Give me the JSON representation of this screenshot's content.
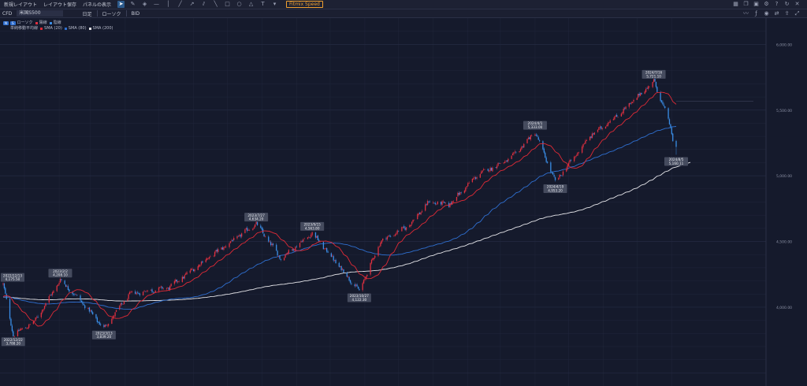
{
  "toolbar": {
    "new_layout": "新規レイアウト",
    "save_layout": "レイアウト保存",
    "panel_display": "パネルの表示",
    "speed_button": "Fitmix Speed",
    "tool_icons": [
      "cursor-icon",
      "brush-icon",
      "eraser-icon",
      "horizontal-line-icon",
      "vertical-line-icon",
      "trend-line-icon",
      "ray-icon",
      "parallel-lines-icon",
      "diagonal-line-icon",
      "rectangle-icon",
      "circle-icon",
      "triangle-icon",
      "text-icon",
      "dropdown-icon"
    ],
    "right_icons": [
      "layout-icon",
      "copy-icon",
      "screenshot-icon",
      "settings-icon",
      "help-icon",
      "refresh-icon",
      "close-icon"
    ]
  },
  "infobar": {
    "market": "CFD",
    "symbol": "米国S500",
    "timeframe": "日足",
    "chart_type": "ローソク",
    "price_side": "BID",
    "right_icons": [
      "line-chart-icon",
      "indicator-icon",
      "camera-icon",
      "compare-icon",
      "export-icon",
      "fullscreen-icon"
    ]
  },
  "legend": {
    "row1": {
      "tag1": "N",
      "tag2": "S",
      "label": "ローソク",
      "up_label": "陽線",
      "down_label": "陰線",
      "up_color": "#e03040",
      "down_color": "#3a8ee8"
    },
    "row2": {
      "label": "単純移動平均線",
      "sma20": "SMA (20)",
      "sma80": "SMA (80)",
      "sma200": "SMA (200)"
    }
  },
  "colors": {
    "background": "#151a2c",
    "grid": "#252b42",
    "up": "#e03040",
    "down": "#3a8ee8",
    "sma20": "#e02a36",
    "sma80": "#2f6fd0",
    "sma200": "#e6e6ea",
    "label_bg": "#454b5e",
    "axis_text": "#8c92a6"
  },
  "chart_data": {
    "type": "candlestick",
    "symbol": "米国S500",
    "timeframe": "日足",
    "x_range": [
      "2022-12-13",
      "2024-08-05"
    ],
    "ylim": [
      3400,
      6200
    ],
    "y_ticks": [
      "6,000.00",
      "5,500.00",
      "5,000.00",
      "4,500.00",
      "4,000.00"
    ],
    "y_tick_values": [
      6000,
      5500,
      5000,
      4500,
      4000
    ],
    "series": [
      {
        "name": "SMA (20)",
        "kind": "moving_average"
      },
      {
        "name": "SMA (80)",
        "kind": "moving_average"
      },
      {
        "name": "SMA (200)",
        "kind": "moving_average"
      }
    ],
    "price_path": [
      [
        "2022-12-13",
        4175.5
      ],
      [
        "2022-12-22",
        3788.2
      ],
      [
        "2023-01-10",
        3890
      ],
      [
        "2023-02-02",
        4208.1
      ],
      [
        "2023-02-20",
        4050
      ],
      [
        "2023-03-13",
        3839.2
      ],
      [
        "2023-04-05",
        4100
      ],
      [
        "2023-05-10",
        4150
      ],
      [
        "2023-06-10",
        4350
      ],
      [
        "2023-07-27",
        4634.2
      ],
      [
        "2023-08-18",
        4370
      ],
      [
        "2023-09-15",
        4563.8
      ],
      [
        "2023-10-27",
        4122.3
      ],
      [
        "2023-11-15",
        4500
      ],
      [
        "2023-12-10",
        4620
      ],
      [
        "2023-12-28",
        4800
      ],
      [
        "2024-01-15",
        4780
      ],
      [
        "2024-02-10",
        5010
      ],
      [
        "2024-03-10",
        5130
      ],
      [
        "2024-04-01",
        5333.0
      ],
      [
        "2024-04-19",
        4953.2
      ],
      [
        "2024-05-20",
        5300
      ],
      [
        "2024-06-18",
        5490
      ],
      [
        "2024-07-16",
        5721.1
      ],
      [
        "2024-07-29",
        5430
      ],
      [
        "2024-08-05",
        5160.1
      ]
    ],
    "annotations": [
      {
        "date": "2022/12/13",
        "value": "4,175.50",
        "kind": "high"
      },
      {
        "date": "2022/12/22",
        "value": "3,788.20",
        "kind": "low"
      },
      {
        "date": "2023/2/2",
        "value": "4,208.10",
        "kind": "high"
      },
      {
        "date": "2023/3/13",
        "value": "3,839.20",
        "kind": "low"
      },
      {
        "date": "2023/7/27",
        "value": "4,634.20",
        "kind": "high"
      },
      {
        "date": "2023/9/15",
        "value": "4,563.80",
        "kind": "high"
      },
      {
        "date": "2023/10/27",
        "value": "4,122.30",
        "kind": "low"
      },
      {
        "date": "2024/4/1",
        "value": "5,333.00",
        "kind": "high"
      },
      {
        "date": "2024/4/19",
        "value": "4,953.20",
        "kind": "low"
      },
      {
        "date": "2024/7/16",
        "value": "5,721.10",
        "kind": "high"
      },
      {
        "date": "2024/8/5",
        "value": "5,160.11",
        "kind": "low"
      }
    ]
  }
}
